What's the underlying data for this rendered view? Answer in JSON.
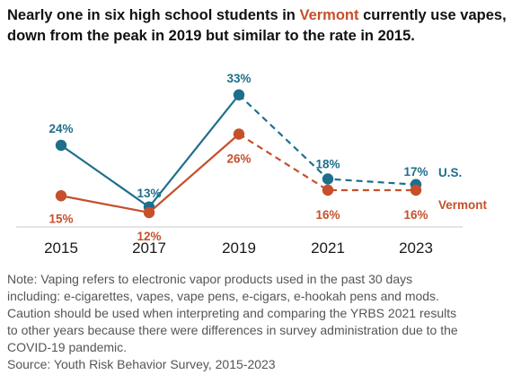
{
  "title": {
    "before": "Nearly one in six high school students in ",
    "highlight": "Vermont",
    "after": " currently use vapes, down from the peak in 2019 but similar to the rate in 2015."
  },
  "colors": {
    "us": "#1f6e8c",
    "vermont": "#c5502b",
    "axis": "#c8c8c8",
    "note": "#555555"
  },
  "chart_data": {
    "type": "line",
    "x": [
      "2015",
      "2017",
      "2019",
      "2021",
      "2023"
    ],
    "ylim": [
      0,
      40
    ],
    "grid": false,
    "legend": "inline labels at right end of lines",
    "series": [
      {
        "name": "U.S.",
        "key": "us",
        "values": [
          24,
          13,
          33,
          18,
          17
        ],
        "labels": [
          "24%",
          "13%",
          "33%",
          "18%",
          "17%"
        ],
        "dashed_from_index": 2
      },
      {
        "name": "Vermont",
        "key": "vermont",
        "values": [
          15,
          12,
          26,
          16,
          16
        ],
        "labels": [
          "15%",
          "12%",
          "26%",
          "16%",
          "16%"
        ],
        "dashed_from_index": 2
      }
    ]
  },
  "note": {
    "lines": [
      "Note: Vaping refers to electronic vapor products used in the past 30 days",
      "including: e-cigarettes, vapes, vape pens, e-cigars, e-hookah pens and mods.",
      "Caution should be used when interpreting and comparing the YRBS 2021 results",
      "to other years because there were differences in survey administration due to the",
      "COVID-19 pandemic."
    ],
    "source": "Source: Youth Risk Behavior Survey, 2015-2023"
  }
}
